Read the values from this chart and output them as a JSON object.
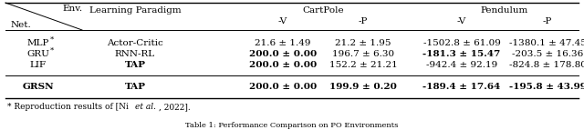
{
  "rows": [
    {
      "net": "MLP",
      "star": true,
      "bold_net": false,
      "paradigm": "Actor-Critic",
      "cp_v": "21.6 ± 1.49",
      "cp_p": "21.2 ± 1.95",
      "pe_v": "-1502.8 ± 61.09",
      "pe_p": "-1380.1 ± 47.45",
      "bold_cp_v": false,
      "bold_cp_p": false,
      "bold_pe_v": false,
      "bold_pe_p": false
    },
    {
      "net": "GRU",
      "star": true,
      "bold_net": false,
      "paradigm": "RNN-RL",
      "cp_v": "200.0 ± 0.00",
      "cp_p": "196.7 ± 6.30",
      "pe_v": "-181.3 ± 15.47",
      "pe_p": "-203.5 ± 16.36",
      "bold_cp_v": true,
      "bold_cp_p": false,
      "bold_pe_v": true,
      "bold_pe_p": false
    },
    {
      "net": "LIF",
      "star": false,
      "bold_net": false,
      "paradigm": "TAP",
      "cp_v": "200.0 ± 0.00",
      "cp_p": "152.2 ± 21.21",
      "pe_v": "-942.4 ± 92.19",
      "pe_p": "-824.8 ± 178.80",
      "bold_cp_v": true,
      "bold_cp_p": false,
      "bold_pe_v": false,
      "bold_pe_p": false
    },
    {
      "net": "GRSN",
      "star": false,
      "bold_net": true,
      "paradigm": "TAP",
      "cp_v": "200.0 ± 0.00",
      "cp_p": "199.9 ± 0.20",
      "pe_v": "-189.4 ± 17.64",
      "pe_p": "-195.8 ± 43.99",
      "bold_cp_v": true,
      "bold_cp_p": true,
      "bold_pe_v": false,
      "bold_pe_p": true
    }
  ],
  "background_color": "#ffffff"
}
